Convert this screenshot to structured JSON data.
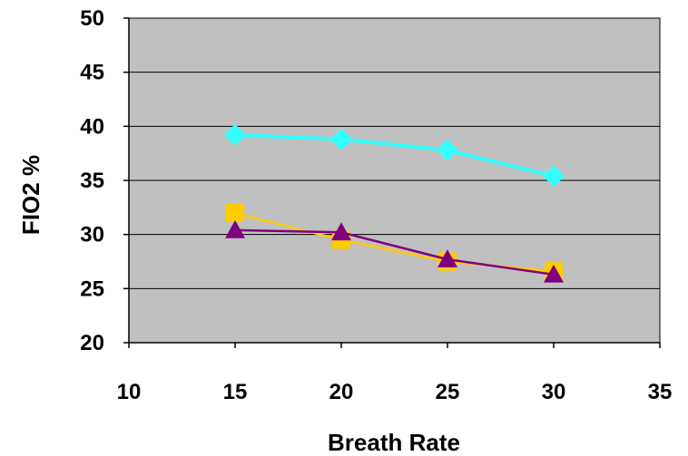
{
  "chart_data": {
    "type": "line",
    "title": "",
    "xlabel": "Breath Rate",
    "ylabel": "FIO2 %",
    "xlim": [
      10,
      35
    ],
    "ylim": [
      20,
      50
    ],
    "x_ticks": [
      10,
      15,
      20,
      25,
      30,
      35
    ],
    "y_ticks": [
      20,
      25,
      30,
      35,
      40,
      45,
      50
    ],
    "x_tick_labels": [
      "10",
      "15",
      "20",
      "25",
      "30",
      "35"
    ],
    "y_tick_labels": [
      "20",
      "25",
      "30",
      "35",
      "40",
      "45",
      "50"
    ],
    "grid": "horizontal",
    "plot_background": "#c0c0c0",
    "legend": "none",
    "series": [
      {
        "marker": "diamond",
        "color": "#33ffff",
        "x": [
          15,
          20,
          25,
          30
        ],
        "y": [
          39.2,
          38.8,
          37.8,
          35.4
        ]
      },
      {
        "marker": "square",
        "color": "#ffcc00",
        "x": [
          15,
          20,
          25,
          30
        ],
        "y": [
          32.0,
          29.5,
          27.5,
          26.6
        ]
      },
      {
        "marker": "triangle",
        "color": "#800080",
        "x": [
          15,
          20,
          25,
          30
        ],
        "y": [
          30.4,
          30.2,
          27.7,
          26.3
        ]
      }
    ]
  }
}
